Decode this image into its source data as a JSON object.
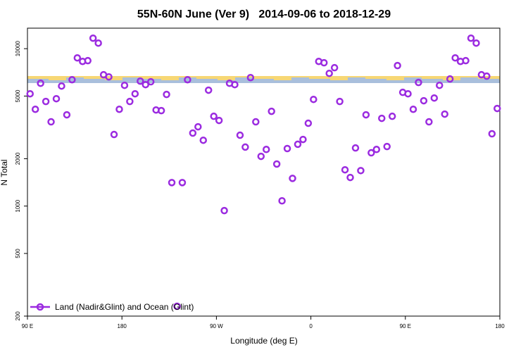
{
  "chart_data": {
    "type": "scatter",
    "title": "55N-60N June (Ver 9)   2014-09-06 to 2018-12-29",
    "xlabel": "Longitude (deg E)",
    "ylabel": "N Total",
    "xlim": [
      90,
      540
    ],
    "xticks": [
      {
        "value": 90,
        "label": "90 E"
      },
      180,
      {
        "value": 270,
        "label": "90 W"
      },
      {
        "value": 360,
        "label": "0"
      },
      {
        "value": 450,
        "label": "90 E"
      },
      {
        "value": 540,
        "label": "180"
      }
    ],
    "ylim": [
      200,
      13500
    ],
    "yscale": "log",
    "yticks": [
      200,
      500,
      1000,
      2000,
      5000,
      10000
    ],
    "legend": "lower left",
    "series": [
      {
        "name": "Land (Nadir&Glint) and Ocean (Glint)",
        "color": "#9b2be0",
        "x": [
          92.5,
          97.5,
          102.5,
          107.5,
          112.5,
          117.5,
          122.5,
          127.5,
          132.5,
          137.5,
          142.5,
          147.5,
          152.5,
          157.5,
          162.5,
          167.5,
          172.5,
          177.5,
          182.5,
          187.5,
          192.5,
          197.5,
          202.5,
          207.5,
          212.5,
          217.5,
          222.5,
          227.5,
          232.5,
          237.5,
          242.5,
          247.5,
          252.5,
          257.5,
          262.5,
          267.5,
          272.5,
          277.5,
          282.5,
          287.5,
          292.5,
          297.5,
          302.5,
          307.5,
          312.5,
          317.5,
          322.5,
          327.5,
          332.5,
          337.5,
          342.5,
          347.5,
          352.5,
          357.5,
          362.5,
          367.5,
          372.5,
          377.5,
          382.5,
          387.5,
          392.5,
          397.5,
          402.5,
          407.5,
          412.5,
          417.5,
          422.5,
          427.5,
          432.5,
          437.5,
          442.5,
          447.5,
          452.5,
          457.5,
          462.5,
          467.5,
          472.5,
          477.5,
          482.5,
          487.5,
          492.5,
          497.5,
          502.5,
          507.5,
          512.5,
          517.5,
          522.5,
          527.5,
          532.5,
          537.5
        ],
        "values": [
          5170,
          4120,
          6030,
          4620,
          3430,
          4810,
          5790,
          3800,
          6350,
          8740,
          8300,
          8390,
          11660,
          10850,
          6830,
          6620,
          2850,
          4120,
          5850,
          4620,
          5170,
          6220,
          5910,
          6160,
          4080,
          4040,
          5120,
          1410,
          231,
          1410,
          6350,
          2910,
          3190,
          2620,
          5450,
          3720,
          3500,
          936,
          6030,
          5910,
          2820,
          2370,
          6550,
          3430,
          2070,
          2290,
          4000,
          1850,
          1080,
          2320,
          1500,
          2470,
          2650,
          3360,
          4760,
          8300,
          8140,
          6970,
          7570,
          4620,
          1700,
          1520,
          2340,
          1680,
          3800,
          2180,
          2290,
          3610,
          2390,
          3720,
          7810,
          5280,
          5170,
          4120,
          6100,
          4670,
          3430,
          4860,
          5850,
          3840,
          6420,
          8740,
          8300,
          8390,
          11660,
          10850,
          6830,
          6690,
          2880,
          4170
        ]
      }
    ]
  }
}
